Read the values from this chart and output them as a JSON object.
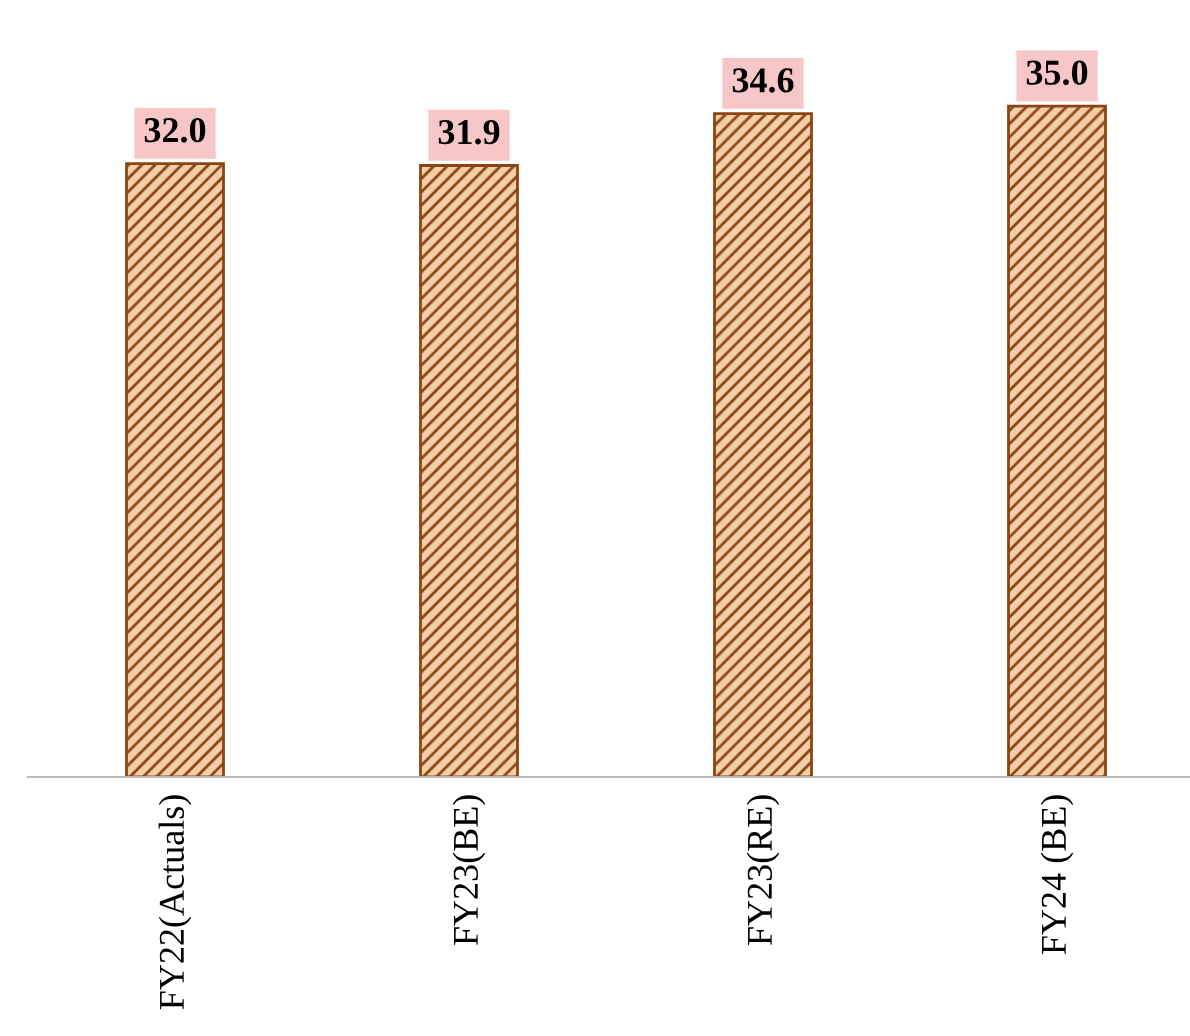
{
  "chart_data": {
    "type": "bar",
    "categories": [
      "FY22(Actuals)",
      "FY23(BE)",
      "FY23(RE)",
      "FY24 (BE)"
    ],
    "values": [
      32.0,
      31.9,
      34.6,
      35.0
    ],
    "value_labels": [
      "32.0",
      "31.9",
      "34.6",
      "35.0"
    ],
    "color": "#8b4513",
    "tick_labels": "x",
    "grid": false,
    "legend": false
  }
}
